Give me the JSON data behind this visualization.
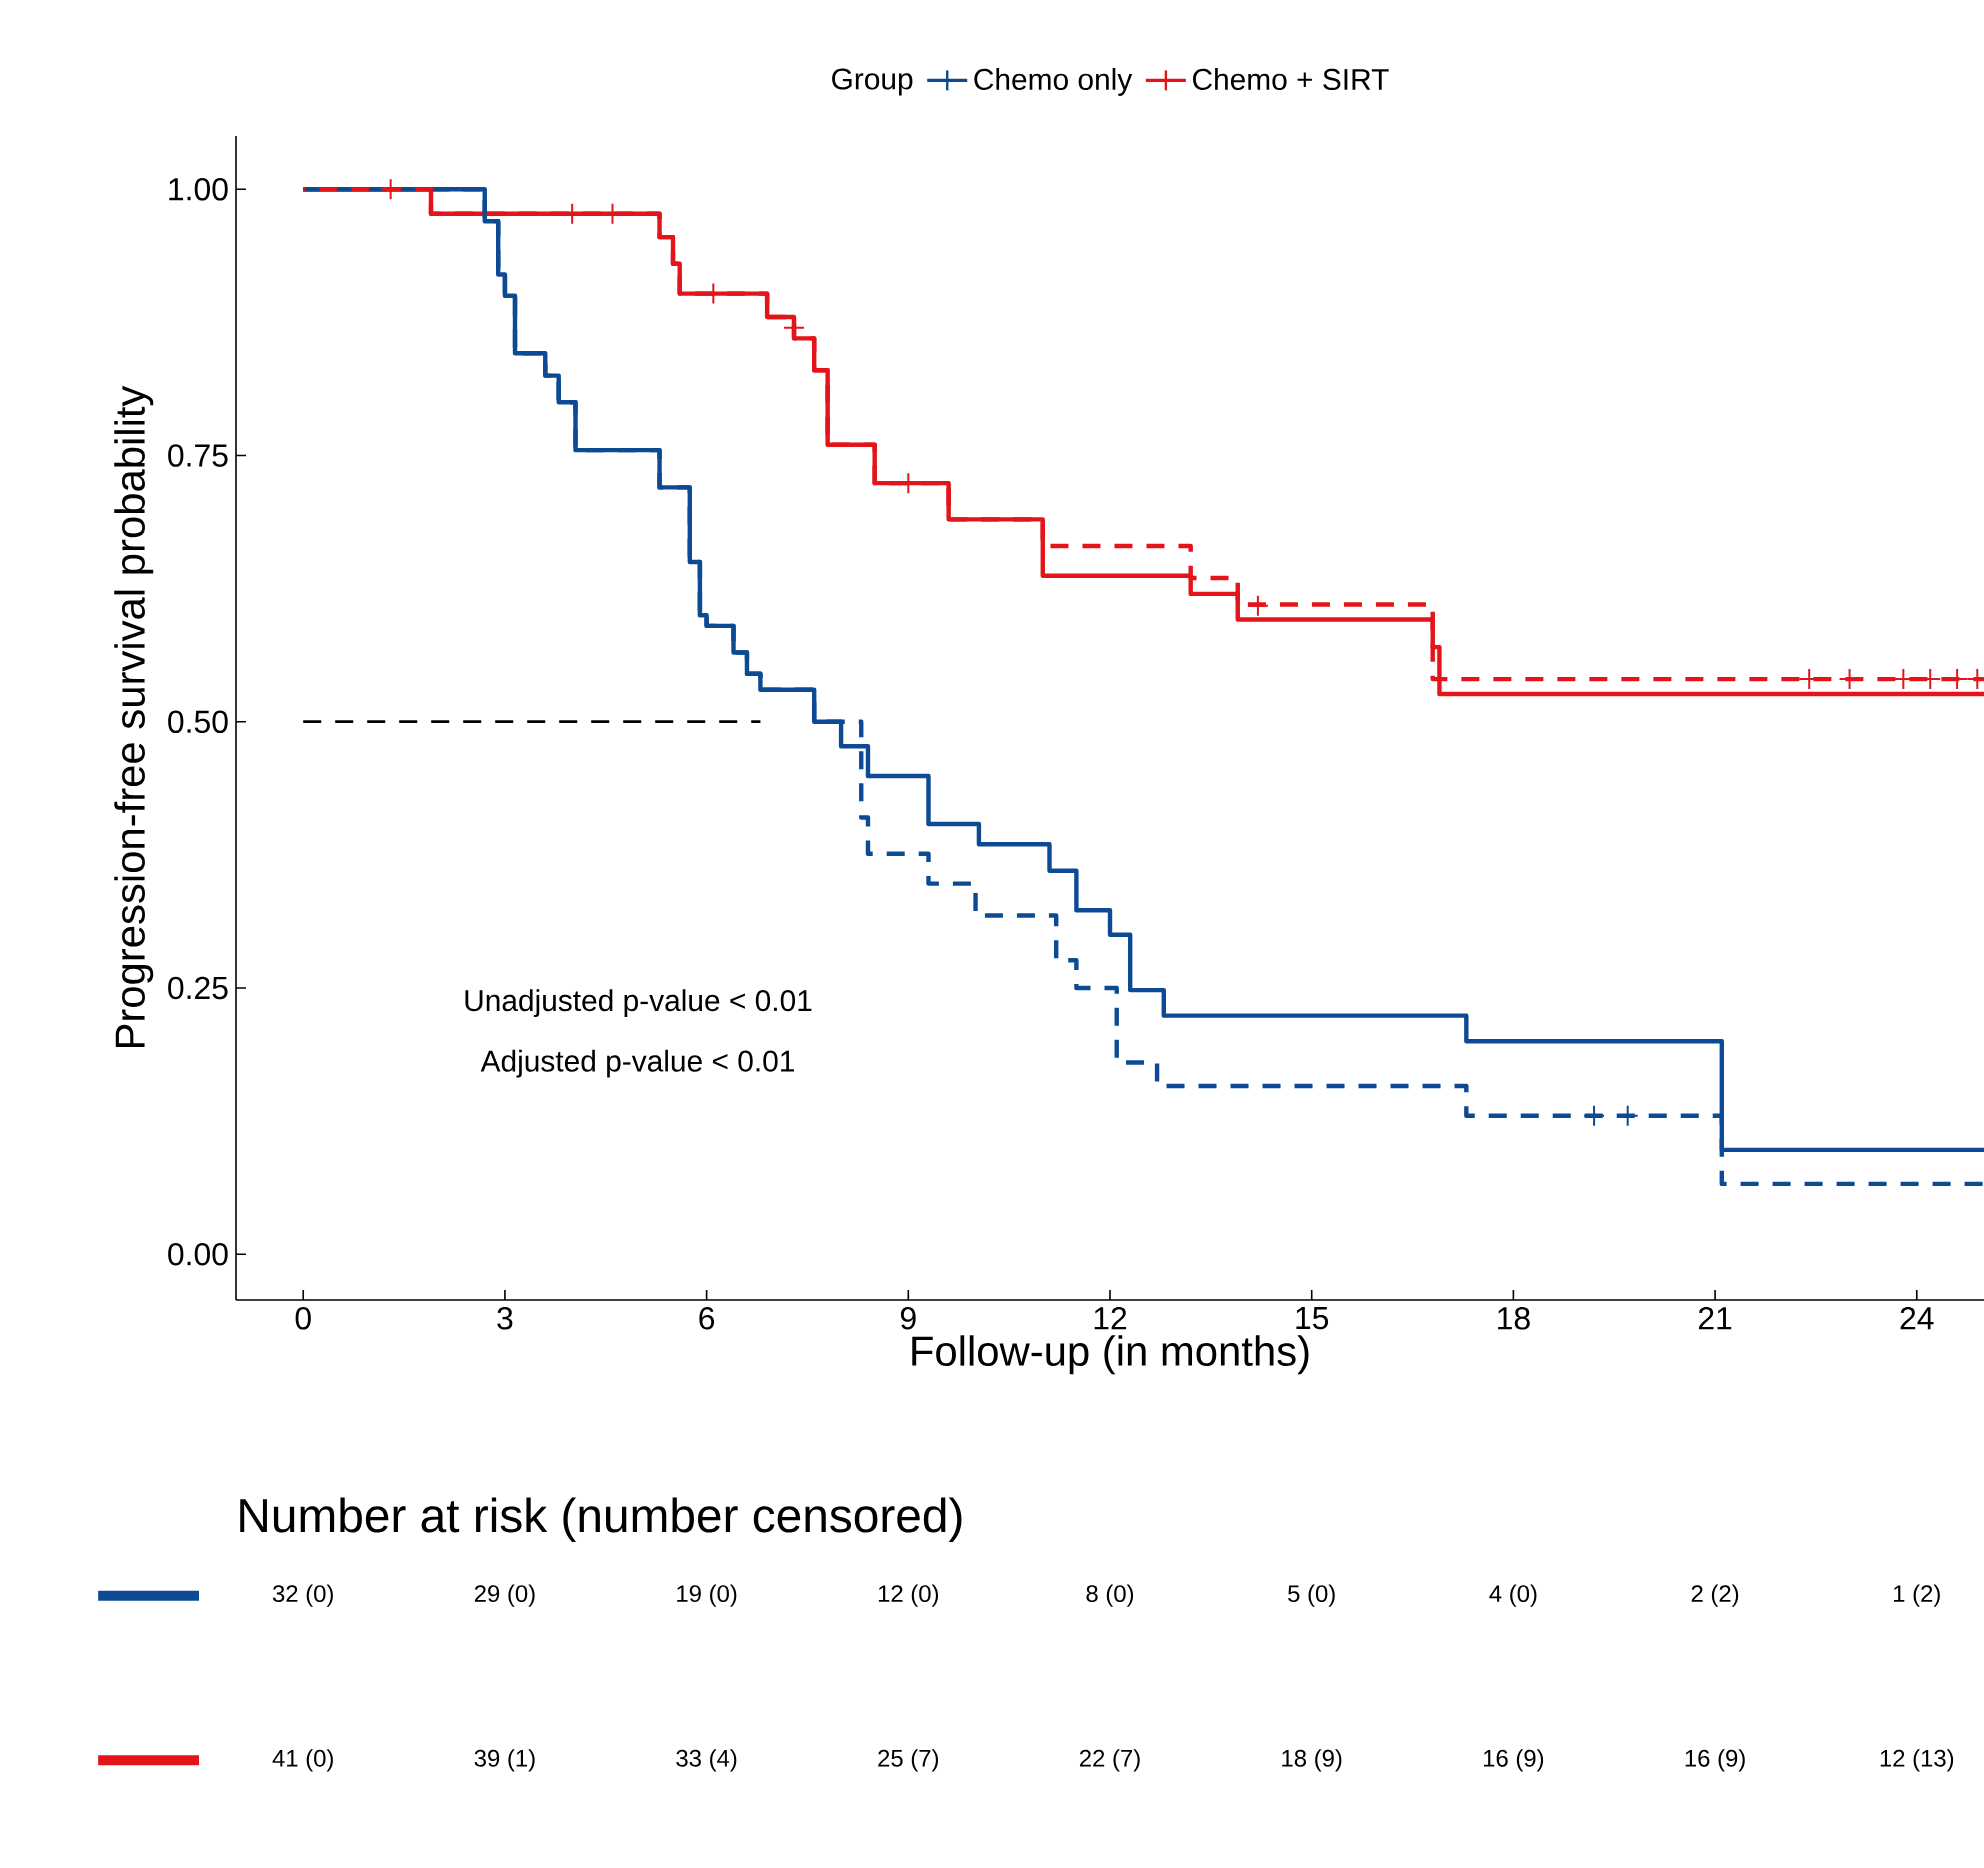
{
  "chart_data": [
    {
      "type": "step",
      "xlabel": "Follow-up (in months)",
      "ylabel": "Progression-free survival probability",
      "legend_title": "Group",
      "legend": "top",
      "xlim": [
        -1,
        25
      ],
      "ylim": [
        -0.043,
        1.05
      ],
      "xticks": [
        0,
        3,
        6,
        9,
        12,
        15,
        18,
        21,
        24
      ],
      "yticks": [
        {
          "value": 0,
          "label": "0.00"
        },
        {
          "value": 0.25,
          "label": "0.25"
        },
        {
          "value": 0.5,
          "label": "0.50"
        },
        {
          "value": 0.75,
          "label": "0.75"
        },
        {
          "value": 1,
          "label": "1.00"
        }
      ],
      "annotations": [
        "Unadjusted p-value < 0.01",
        "Adjusted p-value < 0.01"
      ],
      "series": [
        {
          "name": "Chemo only",
          "color": "#0d4a94",
          "line_style": "solid",
          "x": [
            0,
            2.7,
            2.9,
            3.0,
            3.15,
            3.6,
            3.8,
            4.05,
            5.3,
            5.75,
            5.9,
            6.0,
            6.4,
            6.6,
            6.8,
            7.6,
            8.0,
            8.4,
            9.3,
            10.05,
            11.1,
            11.5,
            12.0,
            12.3,
            12.8,
            17.3,
            21.1,
            25
          ],
          "values": [
            1.0,
            0.97,
            0.92,
            0.9,
            0.846,
            0.825,
            0.8,
            0.755,
            0.72,
            0.65,
            0.6,
            0.59,
            0.565,
            0.545,
            0.53,
            0.5,
            0.477,
            0.449,
            0.404,
            0.385,
            0.36,
            0.323,
            0.3,
            0.248,
            0.224,
            0.2,
            0.098,
            0.098
          ]
        },
        {
          "name": "Chemo + SIRT",
          "color": "#e3151b",
          "line_style": "solid",
          "x": [
            0,
            1.9,
            5.3,
            5.5,
            5.6,
            6.9,
            7.3,
            7.6,
            7.8,
            8.5,
            9.6,
            11.0,
            13.2,
            13.9,
            16.8,
            16.9,
            25
          ],
          "values": [
            1.0,
            0.977,
            0.955,
            0.93,
            0.902,
            0.88,
            0.86,
            0.83,
            0.76,
            0.724,
            0.69,
            0.637,
            0.62,
            0.596,
            0.57,
            0.526,
            0.526
          ]
        },
        {
          "color": "#0d4a94",
          "line_style": "dashed",
          "x": [
            0,
            2.7,
            2.9,
            3.0,
            3.15,
            3.6,
            3.8,
            4.05,
            5.3,
            5.75,
            5.9,
            6.0,
            6.4,
            6.6,
            6.8,
            7.6,
            8.3,
            8.4,
            9.3,
            10.0,
            11.2,
            11.5,
            12.1,
            12.7,
            17.3,
            21.1,
            25
          ],
          "values": [
            1.0,
            0.97,
            0.92,
            0.9,
            0.846,
            0.825,
            0.8,
            0.755,
            0.72,
            0.65,
            0.6,
            0.59,
            0.565,
            0.545,
            0.53,
            0.5,
            0.41,
            0.376,
            0.348,
            0.318,
            0.276,
            0.25,
            0.18,
            0.158,
            0.13,
            0.066,
            0.066
          ]
        },
        {
          "color": "#e3151b",
          "line_style": "dashed",
          "x": [
            0,
            1.9,
            5.3,
            5.5,
            5.6,
            6.9,
            7.3,
            7.6,
            7.8,
            8.5,
            9.6,
            11.0,
            13.2,
            13.9,
            16.8,
            25
          ],
          "values": [
            1.0,
            0.977,
            0.955,
            0.93,
            0.902,
            0.88,
            0.86,
            0.83,
            0.76,
            0.724,
            0.69,
            0.665,
            0.635,
            0.61,
            0.54,
            0.54
          ]
        },
        {
          "type": "scatter",
          "marker": "cross",
          "color": "#e3151b",
          "x": [
            1.3,
            4.0,
            4.6,
            6.1,
            7.3,
            9.0,
            14.2,
            22.4,
            23.0,
            23.8,
            24.2,
            24.6,
            24.9
          ],
          "values": [
            1.0,
            0.977,
            0.977,
            0.902,
            0.87,
            0.724,
            0.609,
            0.54,
            0.54,
            0.54,
            0.54,
            0.54,
            0.54
          ]
        },
        {
          "type": "scatter",
          "marker": "cross",
          "color": "#0d4a94",
          "x": [
            19.2,
            19.7
          ],
          "values": [
            0.13,
            0.13
          ]
        },
        {
          "type": "line",
          "color": "#000000",
          "line_style": "dashed",
          "x": [
            0,
            6.8
          ],
          "values": [
            0.5,
            0.5
          ]
        }
      ]
    },
    {
      "type": "other",
      "title": "Number at risk (number censored)",
      "series": [
        {
          "color": "#0d4a94",
          "values": [
            null,
            null,
            null,
            null,
            null,
            null,
            null,
            null,
            null
          ],
          "value_labels": [
            "32 (0)",
            "29 (0)",
            "19 (0)",
            "12 (0)",
            "8 (0)",
            "5 (0)",
            "4 (0)",
            "2 (2)",
            "1 (2)"
          ]
        },
        {
          "color": "#e3151b",
          "values": [
            null,
            null,
            null,
            null,
            null,
            null,
            null,
            null,
            null
          ],
          "value_labels": [
            "41 (0)",
            "39 (1)",
            "33 (4)",
            "25 (7)",
            "22 (7)",
            "18 (9)",
            "16 (9)",
            "16 (9)",
            "12 (13)"
          ]
        }
      ]
    }
  ]
}
